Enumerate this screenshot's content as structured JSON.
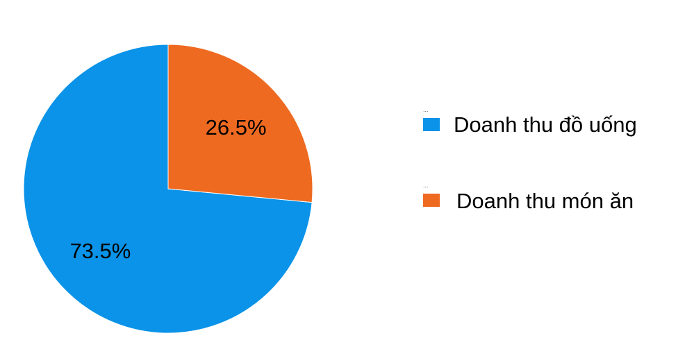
{
  "chart_data": {
    "type": "pie",
    "title": "",
    "categories": [
      "Doanh thu đồ uống",
      "Doanh thu món ăn"
    ],
    "values": [
      73.5,
      26.5
    ],
    "value_labels": [
      "73.5%",
      "26.5%"
    ],
    "colors": [
      "#0a93e8",
      "#ee6a21"
    ],
    "start_angle_deg": 0,
    "direction": "counterclockwise",
    "legend_position": "right",
    "legend_marker_text": "..."
  }
}
